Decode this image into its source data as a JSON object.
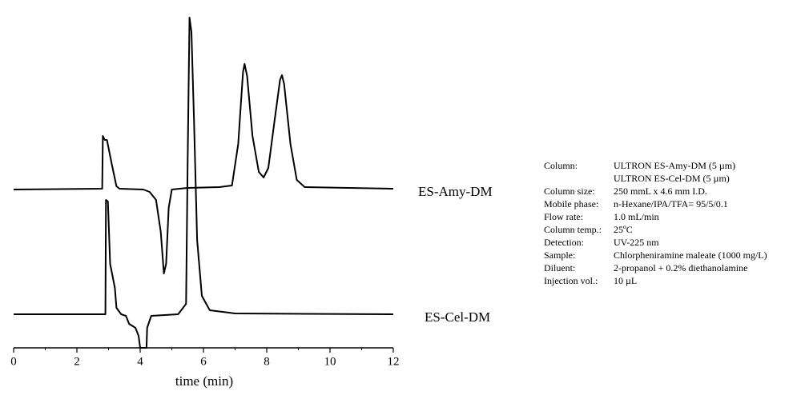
{
  "chart_data": {
    "type": "line",
    "xlabel": "time (min)",
    "xlim": [
      0,
      12
    ],
    "xticks": [
      0,
      2,
      4,
      6,
      8,
      10,
      12
    ],
    "xminorticks": [
      1,
      3,
      5,
      7,
      9,
      11
    ],
    "ylim": [
      0,
      420
    ],
    "color": "#000000",
    "series": [
      {
        "name": "ES-Amy-DM",
        "color": "#000000",
        "x": [
          0,
          2.8,
          2.82,
          2.88,
          2.95,
          3.1,
          3.25,
          3.35,
          4.1,
          4.3,
          4.5,
          4.65,
          4.75,
          4.82,
          4.9,
          5.0,
          5.5,
          6.5,
          6.9,
          7.1,
          7.25,
          7.3,
          7.38,
          7.55,
          7.75,
          7.9,
          8.05,
          8.25,
          8.42,
          8.48,
          8.55,
          8.75,
          8.95,
          9.2,
          12
        ],
        "values": [
          198,
          199,
          265,
          260,
          260,
          230,
          202,
          199,
          198,
          195,
          185,
          145,
          93,
          105,
          175,
          198,
          200,
          201,
          203,
          255,
          345,
          355,
          340,
          265,
          220,
          213,
          225,
          285,
          335,
          341,
          330,
          255,
          210,
          201,
          199
        ]
      },
      {
        "name": "ES-Cel-DM",
        "color": "#000000",
        "x": [
          0,
          2.9,
          2.92,
          2.98,
          3.05,
          3.2,
          3.25,
          3.4,
          3.55,
          3.65,
          3.85,
          3.95,
          4.0,
          4.2,
          4.22,
          4.35,
          5.2,
          5.45,
          5.5,
          5.56,
          5.62,
          5.7,
          5.8,
          5.95,
          6.2,
          7,
          12
        ],
        "values": [
          42,
          42,
          185,
          183,
          105,
          75,
          50,
          42,
          40,
          30,
          25,
          15,
          0,
          0,
          25,
          40,
          42,
          55,
          235,
          413,
          395,
          285,
          135,
          65,
          47,
          43,
          42
        ]
      }
    ]
  },
  "conditions": [
    {
      "label": "Column:",
      "values": [
        "ULTRON ES-Amy-DM (5 µm)",
        "ULTRON ES-Cel-DM (5 µm)"
      ]
    },
    {
      "label": "Column size:",
      "values": [
        "250 mmL x 4.6 mm I.D."
      ]
    },
    {
      "label": "Mobile phase:",
      "values": [
        "n-Hexane/IPA/TFA= 95/5/0.1"
      ]
    },
    {
      "label": "Flow rate:",
      "values": [
        "1.0 mL/min"
      ]
    },
    {
      "label": "Column temp.:",
      "values": [
        "25ºC"
      ]
    },
    {
      "label": "Detection:",
      "values": [
        "UV-225 nm"
      ]
    },
    {
      "label": "Sample:",
      "values": [
        "Chlorpheniramine maleate (1000 mg/L)"
      ]
    },
    {
      "label": "Diluent:",
      "values": [
        "2-propanol + 0.2% diethanolamine"
      ]
    },
    {
      "label": "Injection vol.:",
      "values": [
        "10 µL"
      ]
    }
  ]
}
